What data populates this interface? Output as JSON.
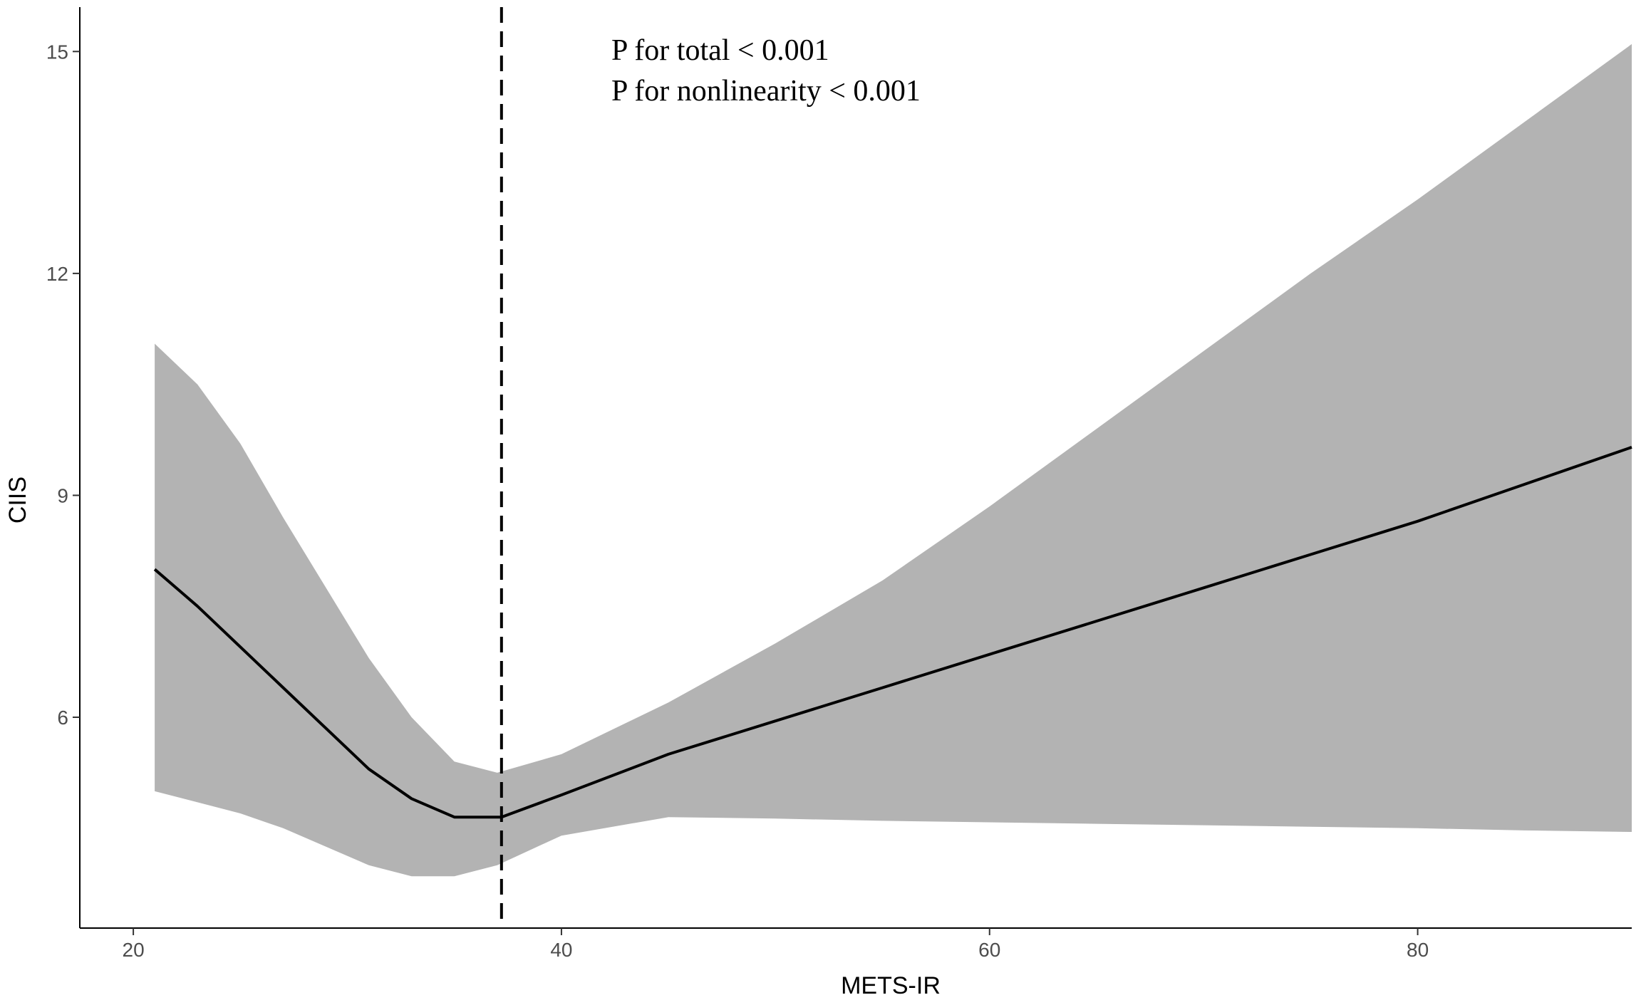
{
  "chart_data": {
    "type": "line",
    "title": "",
    "xlabel": "METS-IR",
    "ylabel": "CIIS",
    "xlim": [
      17.5,
      90
    ],
    "ylim": [
      3.15,
      15.6
    ],
    "x_ticks": [
      20,
      40,
      60,
      80
    ],
    "y_ticks": [
      6,
      9,
      12,
      15
    ],
    "grid": false,
    "legend": "none",
    "colors": {
      "line": "#000000",
      "band": "#b3b3b3",
      "axis": "#000000",
      "tick_label": "#4d4d4d"
    },
    "reference_line": {
      "x": 37.2,
      "style": "dashed"
    },
    "annotations": [
      "P for total < 0.001",
      "P for nonlinearity < 0.001"
    ],
    "series": [
      {
        "role": "estimate",
        "x": [
          21,
          23,
          25,
          27,
          29,
          31,
          33,
          35,
          37.2,
          40,
          45,
          50,
          55,
          60,
          65,
          70,
          75,
          80,
          85,
          90
        ],
        "y": [
          8.0,
          7.5,
          6.95,
          6.4,
          5.85,
          5.3,
          4.9,
          4.65,
          4.65,
          4.95,
          5.5,
          5.95,
          6.4,
          6.85,
          7.3,
          7.75,
          8.2,
          8.65,
          9.15,
          9.65
        ]
      },
      {
        "role": "upper",
        "x": [
          21,
          23,
          25,
          27,
          29,
          31,
          33,
          35,
          37,
          40,
          45,
          50,
          55,
          60,
          65,
          70,
          75,
          80,
          85,
          90
        ],
        "y": [
          11.05,
          10.5,
          9.7,
          8.7,
          7.75,
          6.8,
          6.0,
          5.4,
          5.25,
          5.5,
          6.2,
          7.0,
          7.85,
          8.85,
          9.9,
          10.95,
          12.0,
          13.0,
          14.05,
          15.1
        ]
      },
      {
        "role": "lower",
        "x": [
          21,
          23,
          25,
          27,
          29,
          31,
          33,
          35,
          37,
          40,
          45,
          50,
          55,
          60,
          65,
          70,
          75,
          80,
          85,
          90
        ],
        "y": [
          5.0,
          4.85,
          4.7,
          4.5,
          4.25,
          4.0,
          3.85,
          3.85,
          4.0,
          4.4,
          4.65,
          4.63,
          4.6,
          4.58,
          4.56,
          4.54,
          4.52,
          4.5,
          4.47,
          4.45
        ]
      }
    ]
  }
}
